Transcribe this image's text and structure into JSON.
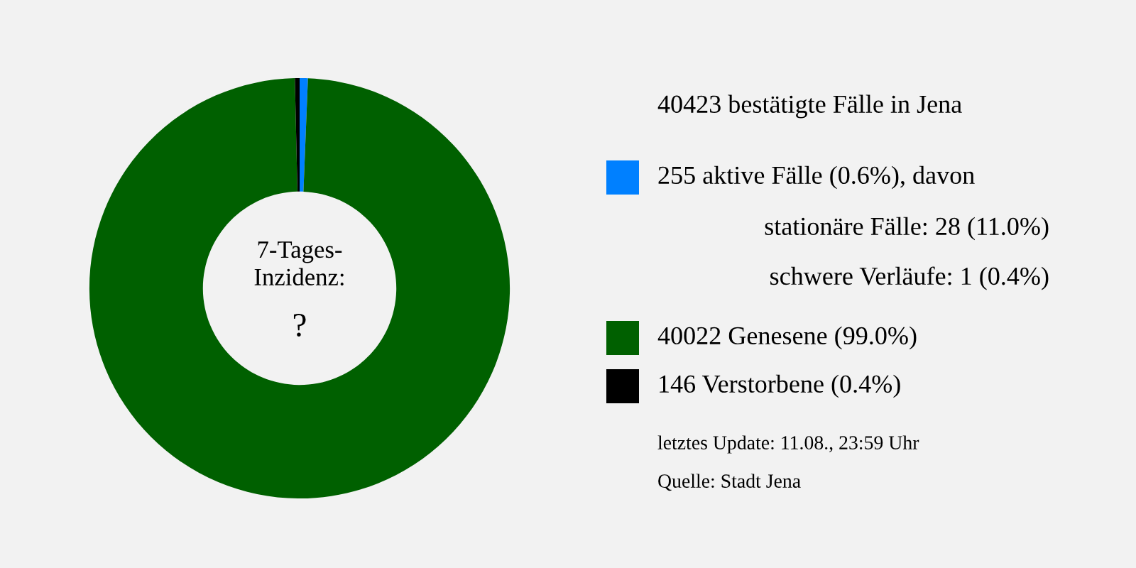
{
  "chart_data": {
    "type": "donut",
    "title": "40423 bestätigte Fälle in Jena",
    "categories": [
      "255 aktive Fälle (0.6%), davon",
      "40022 Genesene (99.0%)",
      "146 Verstorbene (0.4%)"
    ],
    "values": [
      255,
      40022,
      146
    ],
    "colors": [
      "#0080ff",
      "#006000",
      "#000000"
    ],
    "legend": "right",
    "annotations": [
      "7-Tages-\nInzidenz:",
      "?",
      "stationäre Fälle: 28 (11.0%)",
      "schwere Verläufe: 1 (0.4%)",
      "letztes Update: 11.08., 23:59 Uhr",
      "Quelle: Stadt Jena"
    ]
  }
}
